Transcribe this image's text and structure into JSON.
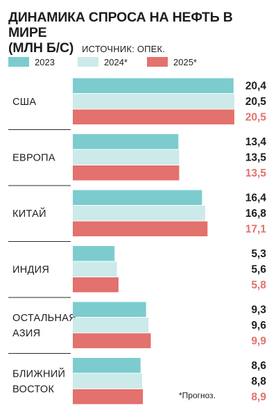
{
  "header": {
    "title_line1": "ДИНАМИКА СПРОСА НА НЕФТЬ В МИРЕ",
    "title_line2": "(МЛН Б/С)",
    "source": "ИСТОЧНИК: ОПЕК."
  },
  "footnote": "*Прогноз.",
  "colors": {
    "s2023": "#7ccccf",
    "s2024": "#cceae9",
    "s2025": "#e3716d",
    "divider": "#2a2a2a"
  },
  "chart_data": {
    "type": "bar",
    "orientation": "horizontal",
    "title": "ДИНАМИКА СПРОСА НА НЕФТЬ В МИРЕ (МЛН Б/С)",
    "categories": [
      [
        "США"
      ],
      [
        "ЕВРОПА"
      ],
      [
        "КИТАЙ"
      ],
      [
        "ИНДИЯ"
      ],
      [
        "ОСТАЛЬНАЯ",
        "АЗИЯ"
      ],
      [
        "БЛИЖНИЙ",
        "ВОСТОК"
      ]
    ],
    "series": [
      {
        "name": "2023",
        "values": [
          20.4,
          13.4,
          16.4,
          5.3,
          9.3,
          8.6
        ],
        "labels": [
          "20,4",
          "13,4",
          "16,4",
          "5,3",
          "9,3",
          "8,6"
        ]
      },
      {
        "name": "2024*",
        "values": [
          20.5,
          13.5,
          16.8,
          5.6,
          9.6,
          8.8
        ],
        "labels": [
          "20,5",
          "13,5",
          "16,8",
          "5,6",
          "9,6",
          "8,8"
        ]
      },
      {
        "name": "2025*",
        "values": [
          20.5,
          13.5,
          17.1,
          5.8,
          9.9,
          8.9
        ],
        "labels": [
          "20,5",
          "13,5",
          "17,1",
          "5,8",
          "9,9",
          "8,9"
        ]
      }
    ],
    "xlim": [
      0,
      20.5
    ],
    "grid": false,
    "legend": "top"
  }
}
